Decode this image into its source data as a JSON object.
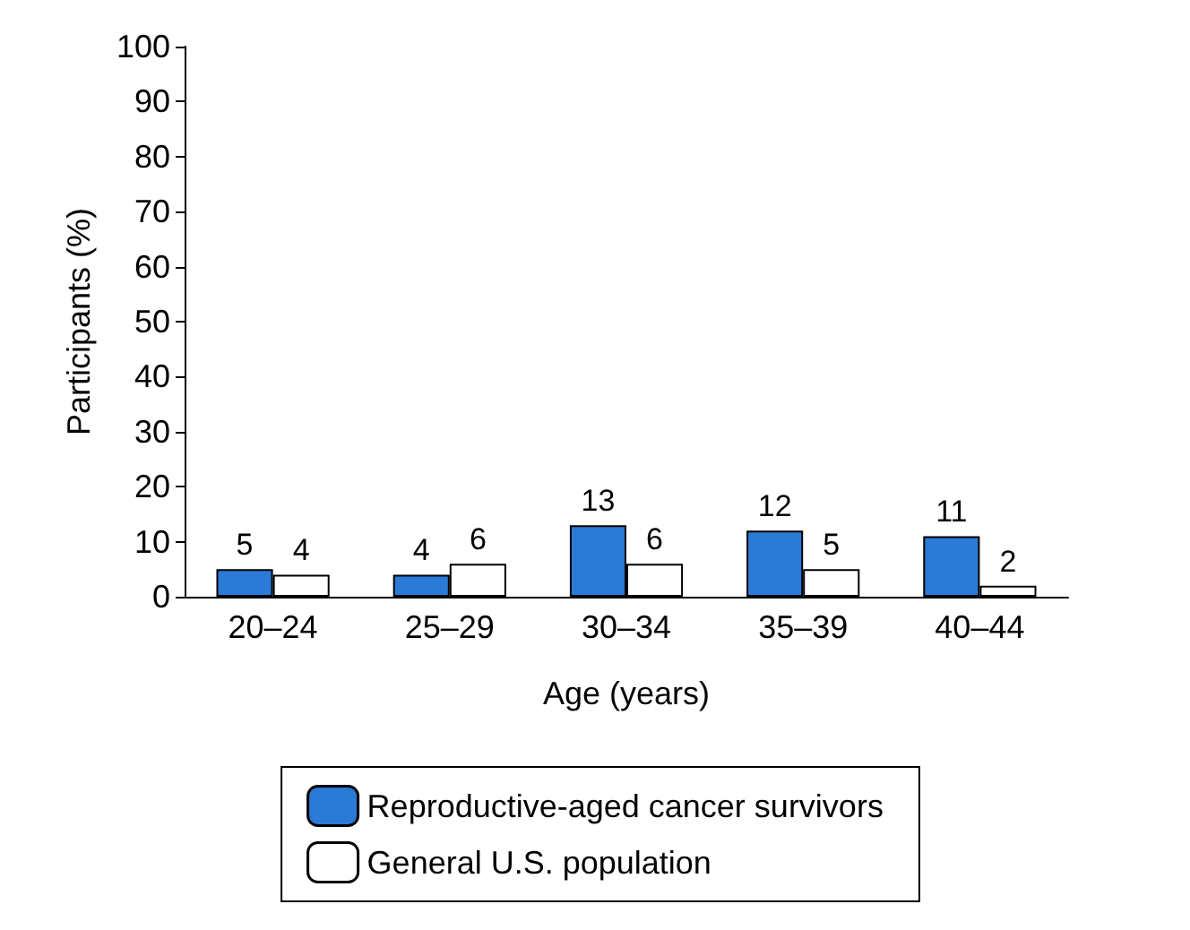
{
  "chart_data": {
    "type": "bar",
    "xlabel": "Age (years)",
    "ylabel": "Participants (%)",
    "categories": [
      "20–24",
      "25–29",
      "30–34",
      "35–39",
      "40–44"
    ],
    "series": [
      {
        "name": "Reproductive-aged cancer survivors",
        "color": "#2a7ad6",
        "values": [
          5,
          4,
          13,
          12,
          11
        ]
      },
      {
        "name": "General U.S. population",
        "color": "#ffffff",
        "values": [
          4,
          6,
          6,
          5,
          2
        ]
      }
    ],
    "ylim": [
      0,
      100
    ],
    "yticks": [
      0,
      10,
      20,
      30,
      40,
      50,
      60,
      70,
      80,
      90,
      100
    ],
    "grid": false,
    "legend": "bottom",
    "data_labels": true
  }
}
